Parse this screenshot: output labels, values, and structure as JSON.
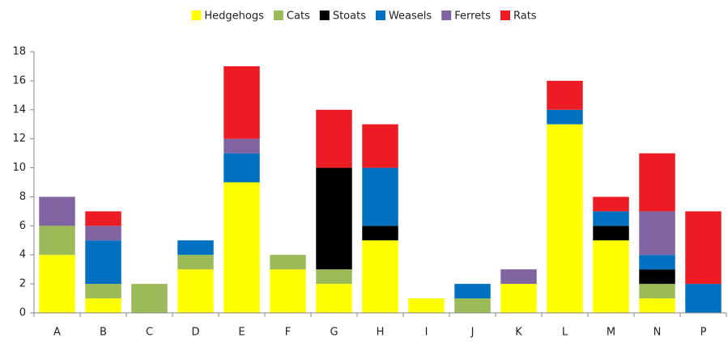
{
  "chart_data": {
    "type": "stacked_bar",
    "categories": [
      "A",
      "B",
      "C",
      "D",
      "E",
      "F",
      "G",
      "H",
      "I",
      "J",
      "K",
      "L",
      "M",
      "N",
      "P"
    ],
    "series": [
      {
        "name": "Hedgehogs",
        "color": "#ffff00",
        "values": [
          4,
          1,
          0,
          3,
          9,
          3,
          2,
          5,
          1,
          0,
          2,
          13,
          5,
          1,
          0
        ]
      },
      {
        "name": "Cats",
        "color": "#9bbb59",
        "values": [
          2,
          1,
          2,
          1,
          0,
          1,
          1,
          0,
          0,
          1,
          0,
          0,
          0,
          1,
          0
        ]
      },
      {
        "name": "Stoats",
        "color": "#000000",
        "values": [
          0,
          0,
          0,
          0,
          0,
          0,
          7,
          1,
          0,
          0,
          0,
          0,
          1,
          1,
          0
        ]
      },
      {
        "name": "Weasels",
        "color": "#0070c0",
        "values": [
          0,
          3,
          0,
          1,
          2,
          0,
          0,
          4,
          0,
          1,
          0,
          1,
          1,
          1,
          2
        ]
      },
      {
        "name": "Ferrets",
        "color": "#8064a2",
        "values": [
          2,
          1,
          0,
          0,
          1,
          0,
          0,
          0,
          0,
          0,
          1,
          0,
          0,
          3,
          0
        ]
      },
      {
        "name": "Rats",
        "color": "#ed1c24",
        "values": [
          0,
          1,
          0,
          0,
          5,
          0,
          4,
          3,
          0,
          0,
          0,
          2,
          1,
          4,
          5
        ]
      }
    ],
    "ylim": [
      0,
      18
    ],
    "yticks": [
      0,
      2,
      4,
      6,
      8,
      10,
      12,
      14,
      16,
      18
    ],
    "legend": "top"
  }
}
